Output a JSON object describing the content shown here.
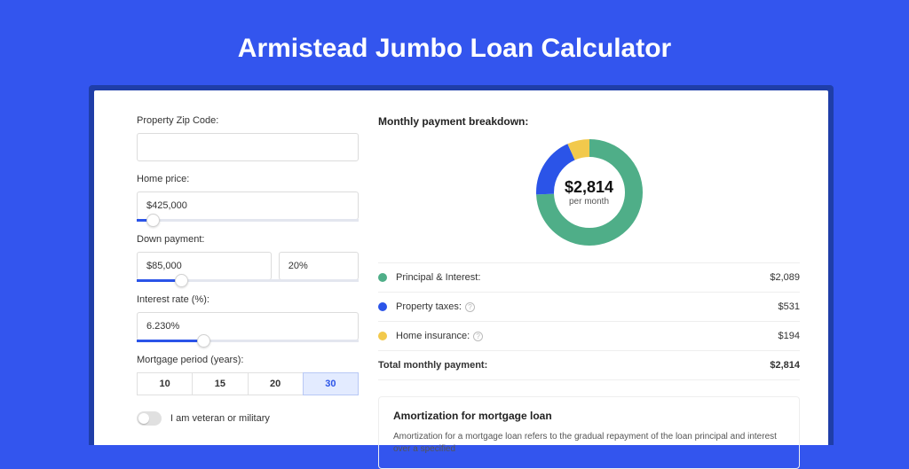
{
  "page": {
    "title": "Armistead Jumbo Loan Calculator",
    "background_color": "#3355ee",
    "card_shadow_color": "#1f3ea8"
  },
  "form": {
    "zip": {
      "label": "Property Zip Code:",
      "value": ""
    },
    "home_price": {
      "label": "Home price:",
      "value": "$425,000",
      "slider_percent": 7
    },
    "down_payment": {
      "label": "Down payment:",
      "amount": "$85,000",
      "percent": "20%",
      "slider_percent": 20
    },
    "interest_rate": {
      "label": "Interest rate (%):",
      "value": "6.230%",
      "slider_percent": 30
    },
    "mortgage_period": {
      "label": "Mortgage period (years):",
      "options": [
        "10",
        "15",
        "20",
        "30"
      ],
      "selected": "30"
    },
    "veteran_toggle": {
      "label": "I am veteran or military",
      "on": false
    }
  },
  "breakdown": {
    "title": "Monthly payment breakdown:",
    "donut": {
      "amount": "$2,814",
      "sub": "per month",
      "slices": [
        {
          "key": "principal_interest",
          "color": "#4fae88",
          "value": 2089
        },
        {
          "key": "property_taxes",
          "color": "#2b54e8",
          "value": 531
        },
        {
          "key": "home_insurance",
          "color": "#f2c94c",
          "value": 194
        }
      ],
      "ring_thickness": 20,
      "radius": 50
    },
    "rows": [
      {
        "dot_color": "#4fae88",
        "label": "Principal & Interest:",
        "has_info": false,
        "value": "$2,089"
      },
      {
        "dot_color": "#2b54e8",
        "label": "Property taxes:",
        "has_info": true,
        "value": "$531"
      },
      {
        "dot_color": "#f2c94c",
        "label": "Home insurance:",
        "has_info": true,
        "value": "$194"
      }
    ],
    "total": {
      "label": "Total monthly payment:",
      "value": "$2,814"
    }
  },
  "amortization": {
    "title": "Amortization for mortgage loan",
    "text": "Amortization for a mortgage loan refers to the gradual repayment of the loan principal and interest over a specified"
  }
}
